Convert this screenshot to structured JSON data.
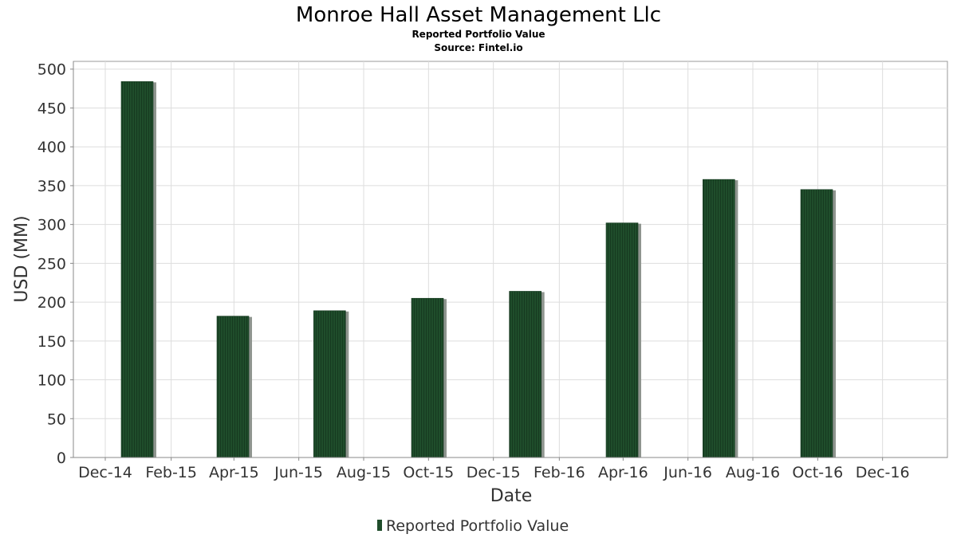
{
  "chart_data": {
    "type": "bar",
    "title": "Monroe Hall Asset Management Llc",
    "subtitle": "Reported Portfolio Value",
    "source": "Source: Fintel.io",
    "xlabel": "Date",
    "ylabel": "USD (MM)",
    "ylim": [
      0,
      510
    ],
    "yticks": [
      0,
      50,
      100,
      150,
      200,
      250,
      300,
      350,
      400,
      450,
      500
    ],
    "xlim": [
      "2014-11-01",
      "2017-01-31"
    ],
    "xtick_labels": [
      {
        "date": "2014-12-01",
        "label": "Dec-14"
      },
      {
        "date": "2015-02-01",
        "label": "Feb-15"
      },
      {
        "date": "2015-04-01",
        "label": "Apr-15"
      },
      {
        "date": "2015-06-01",
        "label": "Jun-15"
      },
      {
        "date": "2015-08-01",
        "label": "Aug-15"
      },
      {
        "date": "2015-10-01",
        "label": "Oct-15"
      },
      {
        "date": "2015-12-01",
        "label": "Dec-15"
      },
      {
        "date": "2016-02-01",
        "label": "Feb-16"
      },
      {
        "date": "2016-04-01",
        "label": "Apr-16"
      },
      {
        "date": "2016-06-01",
        "label": "Jun-16"
      },
      {
        "date": "2016-08-01",
        "label": "Aug-16"
      },
      {
        "date": "2016-10-01",
        "label": "Oct-16"
      },
      {
        "date": "2016-12-01",
        "label": "Dec-16"
      }
    ],
    "series": [
      {
        "name": "Reported Portfolio Value",
        "color": "#1f4d2b",
        "points": [
          {
            "date": "2014-12-31",
            "value": 484
          },
          {
            "date": "2015-03-31",
            "value": 182
          },
          {
            "date": "2015-06-30",
            "value": 189
          },
          {
            "date": "2015-09-30",
            "value": 205
          },
          {
            "date": "2015-12-31",
            "value": 214
          },
          {
            "date": "2016-03-31",
            "value": 302
          },
          {
            "date": "2016-06-30",
            "value": 358
          },
          {
            "date": "2016-09-30",
            "value": 345
          }
        ]
      }
    ],
    "grid": true,
    "legend_position": "bottom"
  }
}
